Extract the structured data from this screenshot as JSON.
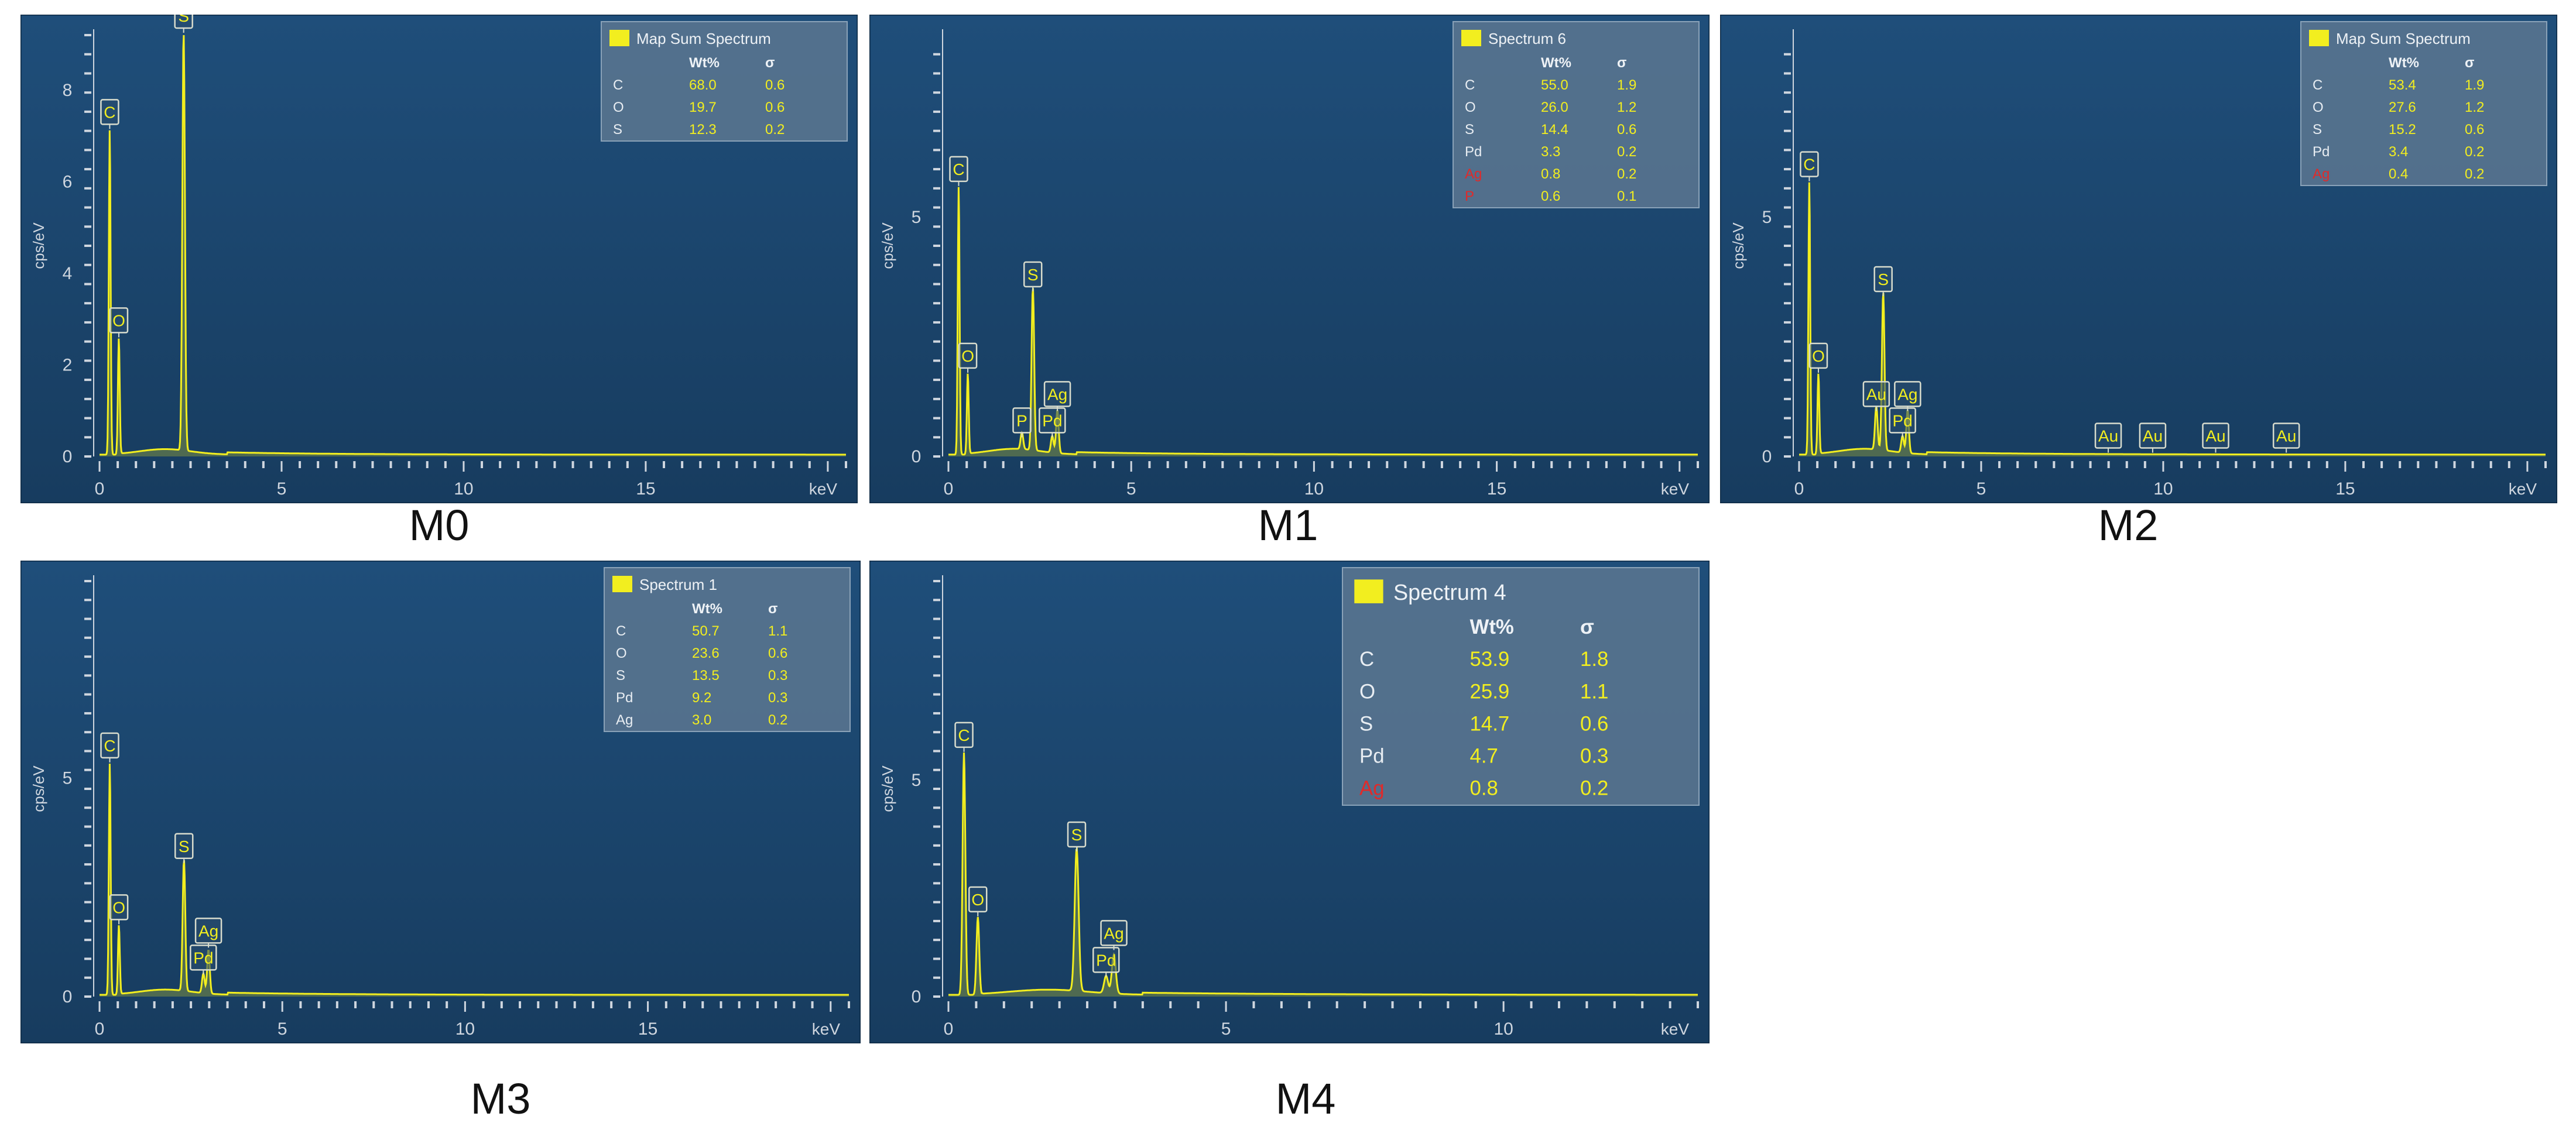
{
  "colors": {
    "background": "#1f4e7a",
    "background_dark": "#173c5f",
    "axis": "#cfd6df",
    "trace": "#f2ee1f",
    "label_border": "#d8dccd",
    "legend_bg": "#5c7791",
    "legend_text": "#f2ee1f",
    "legend_element_text": "#e8edf2",
    "highlight_element": "#e02a2a"
  },
  "chart_data": [
    {
      "id": "M0",
      "type": "line",
      "caption": "M0",
      "ylabel": "cps/eV",
      "xlabel": "keV",
      "xlim": [
        0,
        20.5
      ],
      "ylim": [
        0,
        9.2
      ],
      "xticks": [
        "0",
        "5",
        "10",
        "15"
      ],
      "yticks": [
        "0",
        "2",
        "4",
        "6",
        "8"
      ],
      "peaks": [
        {
          "element": "C",
          "x": 0.28,
          "y": 7.1
        },
        {
          "element": "O",
          "x": 0.53,
          "y": 2.55
        },
        {
          "element": "S",
          "x": 2.31,
          "y": 9.2
        }
      ],
      "legend": {
        "title": "Map Sum Spectrum",
        "headers": [
          "Wt%",
          "σ"
        ],
        "rows": [
          {
            "element": "C",
            "wt": "68.0",
            "sigma": "0.6",
            "highlight": false
          },
          {
            "element": "O",
            "wt": "19.7",
            "sigma": "0.6",
            "highlight": false
          },
          {
            "element": "S",
            "wt": "12.3",
            "sigma": "0.2",
            "highlight": false
          }
        ]
      }
    },
    {
      "id": "M1",
      "type": "line",
      "caption": "M1",
      "ylabel": "cps/eV",
      "xlabel": "keV",
      "xlim": [
        0,
        20.5
      ],
      "ylim": [
        0,
        8.8
      ],
      "xticks": [
        "0",
        "5",
        "10",
        "15"
      ],
      "yticks": [
        "0",
        "5"
      ],
      "peaks": [
        {
          "element": "C",
          "x": 0.28,
          "y": 5.6
        },
        {
          "element": "O",
          "x": 0.53,
          "y": 1.7
        },
        {
          "element": "P",
          "x": 2.01,
          "y": 0.35
        },
        {
          "element": "S",
          "x": 2.31,
          "y": 3.4
        },
        {
          "element": "Pd",
          "x": 2.84,
          "y": 0.35
        },
        {
          "element": "Ag",
          "x": 2.98,
          "y": 0.9
        }
      ],
      "legend": {
        "title": "Spectrum 6",
        "headers": [
          "Wt%",
          "σ"
        ],
        "rows": [
          {
            "element": "C",
            "wt": "55.0",
            "sigma": "1.9",
            "highlight": false
          },
          {
            "element": "O",
            "wt": "26.0",
            "sigma": "1.2",
            "highlight": false
          },
          {
            "element": "S",
            "wt": "14.4",
            "sigma": "0.6",
            "highlight": false
          },
          {
            "element": "Pd",
            "wt": "3.3",
            "sigma": "0.2",
            "highlight": false
          },
          {
            "element": "Ag",
            "wt": "0.8",
            "sigma": "0.2",
            "highlight": true
          },
          {
            "element": "P",
            "wt": "0.6",
            "sigma": "0.1",
            "highlight": true
          }
        ]
      }
    },
    {
      "id": "M2",
      "type": "line",
      "caption": "M2",
      "ylabel": "cps/eV",
      "xlabel": "keV",
      "xlim": [
        0,
        20.5
      ],
      "ylim": [
        0,
        8.8
      ],
      "xticks": [
        "0",
        "5",
        "10",
        "15"
      ],
      "yticks": [
        "0",
        "5"
      ],
      "peaks": [
        {
          "element": "C",
          "x": 0.28,
          "y": 5.7
        },
        {
          "element": "O",
          "x": 0.53,
          "y": 1.7
        },
        {
          "element": "Au",
          "x": 2.12,
          "y": 0.9
        },
        {
          "element": "S",
          "x": 2.31,
          "y": 3.3
        },
        {
          "element": "Pd",
          "x": 2.84,
          "y": 0.35
        },
        {
          "element": "Ag",
          "x": 2.98,
          "y": 0.9
        },
        {
          "element": "Au",
          "x": 8.49,
          "y": 0.03
        },
        {
          "element": "Au",
          "x": 9.71,
          "y": 0.03
        },
        {
          "element": "Au",
          "x": 11.44,
          "y": 0.03
        },
        {
          "element": "Au",
          "x": 13.38,
          "y": 0.03
        }
      ],
      "legend": {
        "title": "Map Sum Spectrum",
        "headers": [
          "Wt%",
          "σ"
        ],
        "rows": [
          {
            "element": "C",
            "wt": "53.4",
            "sigma": "1.9",
            "highlight": false
          },
          {
            "element": "O",
            "wt": "27.6",
            "sigma": "1.2",
            "highlight": false
          },
          {
            "element": "S",
            "wt": "15.2",
            "sigma": "0.6",
            "highlight": false
          },
          {
            "element": "Pd",
            "wt": "3.4",
            "sigma": "0.2",
            "highlight": false
          },
          {
            "element": "Ag",
            "wt": "0.4",
            "sigma": "0.2",
            "highlight": true
          }
        ]
      }
    },
    {
      "id": "M3",
      "type": "line",
      "caption": "M3",
      "ylabel": "cps/eV",
      "xlabel": "keV",
      "xlim": [
        0,
        20.5
      ],
      "ylim": [
        0,
        9.5
      ],
      "xticks": [
        "0",
        "5",
        "10",
        "15"
      ],
      "yticks": [
        "0",
        "5"
      ],
      "peaks": [
        {
          "element": "C",
          "x": 0.28,
          "y": 5.3
        },
        {
          "element": "O",
          "x": 0.53,
          "y": 1.6
        },
        {
          "element": "S",
          "x": 2.31,
          "y": 3.0
        },
        {
          "element": "Pd",
          "x": 2.84,
          "y": 0.45
        },
        {
          "element": "Ag",
          "x": 2.98,
          "y": 1.0
        }
      ],
      "legend": {
        "title": "Spectrum 1",
        "headers": [
          "Wt%",
          "σ"
        ],
        "rows": [
          {
            "element": "C",
            "wt": "50.7",
            "sigma": "1.1",
            "highlight": false
          },
          {
            "element": "O",
            "wt": "23.6",
            "sigma": "0.6",
            "highlight": false
          },
          {
            "element": "S",
            "wt": "13.5",
            "sigma": "0.3",
            "highlight": false
          },
          {
            "element": "Pd",
            "wt": "9.2",
            "sigma": "0.3",
            "highlight": false
          },
          {
            "element": "Ag",
            "wt": "3.0",
            "sigma": "0.2",
            "highlight": false
          }
        ]
      }
    },
    {
      "id": "M4",
      "type": "line",
      "caption": "M4",
      "ylabel": "cps/eV",
      "xlabel": "keV",
      "xlim": [
        0,
        13.5
      ],
      "ylim": [
        0,
        9.6
      ],
      "xticks": [
        "0",
        "5",
        "10"
      ],
      "yticks": [
        "0",
        "5"
      ],
      "peaks": [
        {
          "element": "C",
          "x": 0.28,
          "y": 5.6
        },
        {
          "element": "O",
          "x": 0.53,
          "y": 1.8
        },
        {
          "element": "S",
          "x": 2.31,
          "y": 3.3
        },
        {
          "element": "Pd",
          "x": 2.84,
          "y": 0.4
        },
        {
          "element": "Ag",
          "x": 2.98,
          "y": 0.9
        }
      ],
      "legend": {
        "title": "Spectrum 4",
        "headers": [
          "Wt%",
          "σ"
        ],
        "rows": [
          {
            "element": "C",
            "wt": "53.9",
            "sigma": "1.8",
            "highlight": false
          },
          {
            "element": "O",
            "wt": "25.9",
            "sigma": "1.1",
            "highlight": false
          },
          {
            "element": "S",
            "wt": "14.7",
            "sigma": "0.6",
            "highlight": false
          },
          {
            "element": "Pd",
            "wt": "4.7",
            "sigma": "0.3",
            "highlight": false
          },
          {
            "element": "Ag",
            "wt": "0.8",
            "sigma": "0.2",
            "highlight": true
          }
        ]
      }
    }
  ]
}
